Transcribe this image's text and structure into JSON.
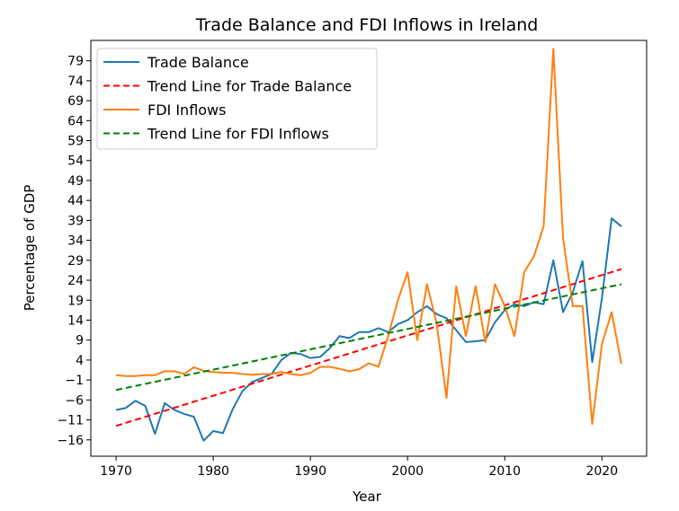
{
  "chart_data": {
    "type": "line",
    "title": "Trade Balance and FDI Inflows in Ireland",
    "xlabel": "Year",
    "ylabel": "Percentage of GDP",
    "xlim": [
      1967.4,
      2024.6
    ],
    "ylim": [
      -20.1,
      84.1
    ],
    "x_ticks": [
      1970,
      1980,
      1990,
      2000,
      2010,
      2020
    ],
    "y_ticks": [
      -16,
      -11,
      -6,
      -1,
      4,
      9,
      14,
      19,
      24,
      29,
      34,
      39,
      44,
      49,
      54,
      59,
      64,
      69,
      74,
      79
    ],
    "grid": false,
    "legend_position": "top-left",
    "x": [
      1970,
      1971,
      1972,
      1973,
      1974,
      1975,
      1976,
      1977,
      1978,
      1979,
      1980,
      1981,
      1982,
      1983,
      1984,
      1985,
      1986,
      1987,
      1988,
      1989,
      1990,
      1991,
      1992,
      1993,
      1994,
      1995,
      1996,
      1997,
      1998,
      1999,
      2000,
      2001,
      2002,
      2003,
      2004,
      2005,
      2006,
      2007,
      2008,
      2009,
      2010,
      2011,
      2012,
      2013,
      2014,
      2015,
      2016,
      2017,
      2018,
      2019,
      2020,
      2021,
      2022
    ],
    "series": [
      {
        "name": "Trade Balance",
        "color": "#1f77b4",
        "dash": "solid",
        "values": [
          -8.5,
          -8.0,
          -6.2,
          -7.5,
          -14.5,
          -6.8,
          -8.5,
          -9.5,
          -10.2,
          -16.2,
          -13.8,
          -14.3,
          -8.3,
          -3.8,
          -1.5,
          -0.5,
          0.5,
          4.0,
          5.8,
          5.5,
          4.5,
          4.8,
          7.0,
          10.0,
          9.5,
          11.0,
          11.0,
          12.0,
          11.0,
          13.0,
          14.0,
          16.0,
          17.5,
          15.5,
          14.5,
          11.5,
          8.5,
          8.7,
          9.0,
          13.5,
          16.5,
          18.0,
          17.5,
          18.5,
          18.0,
          29.0,
          16.0,
          21.0,
          28.8,
          3.5,
          19.5,
          39.5,
          37.5
        ]
      },
      {
        "name": "Trend Line for Trade Balance",
        "color": "#ff0000",
        "dash": "dashed",
        "values": [
          -12.5,
          26.8
        ],
        "x": [
          1970,
          2022
        ]
      },
      {
        "name": "FDI Inflows",
        "color": "#ff7f0e",
        "dash": "solid",
        "values": [
          0.2,
          0.0,
          0.0,
          0.2,
          0.2,
          1.2,
          1.2,
          0.5,
          2.2,
          1.3,
          1.0,
          0.8,
          0.8,
          0.5,
          0.3,
          0.5,
          0.5,
          1.0,
          0.5,
          0.2,
          0.8,
          2.3,
          2.3,
          1.8,
          1.2,
          1.7,
          3.2,
          2.3,
          10.0,
          19.0,
          26.0,
          9.0,
          23.0,
          13.0,
          -5.5,
          22.5,
          10.0,
          22.5,
          8.5,
          23.0,
          17.5,
          10.0,
          26.0,
          30.0,
          37.5,
          82.0,
          34.5,
          17.5,
          17.5,
          -12.0,
          8.0,
          16.0,
          3.0
        ]
      },
      {
        "name": "Trend Line for FDI Inflows",
        "color": "#008000",
        "dash": "dashed",
        "values": [
          -3.5,
          23.0
        ],
        "x": [
          1970,
          2022
        ]
      }
    ]
  }
}
